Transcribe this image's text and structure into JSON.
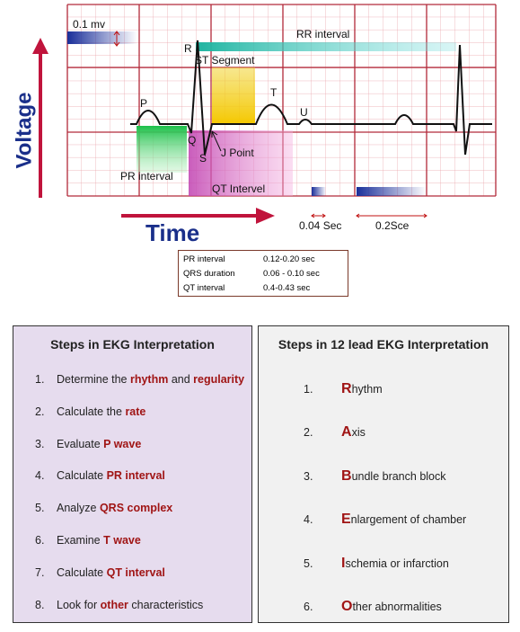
{
  "diagram": {
    "voltage_scale": "0.1 mv",
    "rr_interval": "RR interval",
    "r": "R",
    "st_segment": "ST Segment",
    "p": "P",
    "t": "T",
    "u": "U",
    "q": "Q",
    "s": "S",
    "j_point": "J Point",
    "pr_interval": "PR interval",
    "qt_interval": "QT Intervel",
    "y_axis": "Voltage",
    "x_axis": "Time",
    "small_box": "0.04 Sec",
    "large_box": "0.2Sce"
  },
  "table": {
    "rows": [
      [
        "PR interval",
        "0.12-0.20 sec"
      ],
      [
        "QRS duration",
        "0.06 - 0.10 sec"
      ],
      [
        "QT interval",
        "0.4-0.43 sec"
      ]
    ]
  },
  "left_panel": {
    "title": "Steps in EKG Interpretation",
    "items": [
      {
        "number": "1.",
        "parts": [
          {
            "text": "Determine the "
          },
          {
            "text": "rhythm",
            "highlight": true
          },
          {
            "text": " and "
          },
          {
            "text": "regularity",
            "highlight": true
          }
        ]
      },
      {
        "number": "2.",
        "parts": [
          {
            "text": "Calculate the "
          },
          {
            "text": "rate",
            "highlight": true
          }
        ]
      },
      {
        "number": "3.",
        "parts": [
          {
            "text": "Evaluate "
          },
          {
            "text": "P wave",
            "highlight": true
          }
        ]
      },
      {
        "number": "4.",
        "parts": [
          {
            "text": "Calculate "
          },
          {
            "text": "PR interval",
            "highlight": true
          }
        ]
      },
      {
        "number": "5.",
        "parts": [
          {
            "text": "Analyze "
          },
          {
            "text": "QRS complex",
            "highlight": true
          }
        ]
      },
      {
        "number": "6.",
        "parts": [
          {
            "text": "Examine "
          },
          {
            "text": "T wave",
            "highlight": true
          }
        ]
      },
      {
        "number": "7.",
        "parts": [
          {
            "text": "Calculate "
          },
          {
            "text": "QT interval",
            "highlight": true
          }
        ]
      },
      {
        "number": "8.",
        "parts": [
          {
            "text": "Look for "
          },
          {
            "text": "other",
            "highlight": true
          },
          {
            "text": " characteristics"
          }
        ]
      }
    ]
  },
  "right_panel": {
    "title": "Steps in 12 lead EKG Interpretation",
    "items": [
      {
        "number": "1.",
        "letter": "R",
        "rest": "hythm"
      },
      {
        "number": "2.",
        "letter": "A",
        "rest": "xis"
      },
      {
        "number": "3.",
        "letter": "B",
        "rest": "undle branch block"
      },
      {
        "number": "4.",
        "letter": "E",
        "rest": "nlargement of chamber"
      },
      {
        "number": "5.",
        "letter": "I",
        "rest": "schemia or infarction"
      },
      {
        "number": "6.",
        "letter": "O",
        "rest": "ther abnormalities"
      }
    ]
  }
}
